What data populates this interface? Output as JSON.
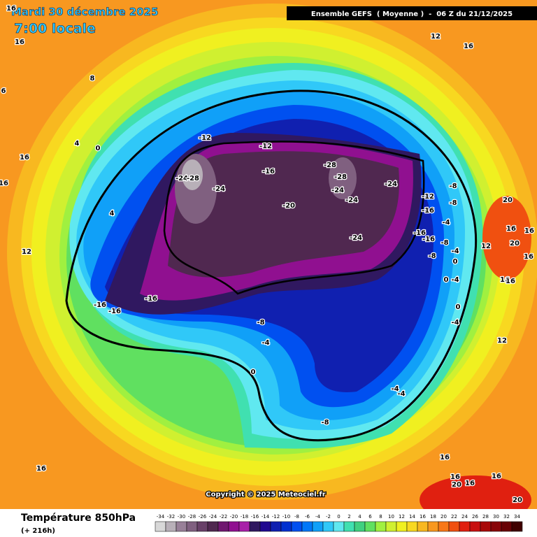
{
  "header": {
    "date": "Mardi 30 décembre 2025",
    "local_time": "7:00 locale",
    "run": "Ensemble GEFS  ( Moyenne )  -  06 Z du 21/12/2025",
    "copyright": "Copyright © 2025 Meteociel.fr"
  },
  "footer": {
    "title": "Température 850hPa",
    "lead": "(+ 216h)"
  },
  "scale": {
    "values": [
      -34,
      -32,
      -30,
      -28,
      -26,
      -24,
      -22,
      -20,
      -18,
      -16,
      -14,
      -12,
      -10,
      -8,
      -6,
      -4,
      -2,
      0,
      2,
      4,
      6,
      8,
      10,
      12,
      14,
      16,
      18,
      20,
      22,
      24,
      26,
      28,
      30,
      32,
      34
    ],
    "colors": [
      "#d8d8d8",
      "#b8b0b8",
      "#988098",
      "#806080",
      "#684068",
      "#502850",
      "#701870",
      "#901090",
      "#a820a8",
      "#301860",
      "#200890",
      "#1020b0",
      "#0030d0",
      "#0050f0",
      "#0078f8",
      "#10a0f8",
      "#30c8f8",
      "#60e8f0",
      "#40e0b0",
      "#40d080",
      "#60e060",
      "#a0f040",
      "#d0f030",
      "#f0f020",
      "#f8d820",
      "#f8b820",
      "#f89820",
      "#f87818",
      "#f05010",
      "#e02010",
      "#c81010",
      "#a80808",
      "#880408",
      "#680004",
      "#400000"
    ]
  },
  "map_labels": [
    16,
    16,
    6,
    8,
    4,
    0,
    16,
    16,
    4,
    12,
    12,
    16,
    -12,
    -12,
    -16,
    -24,
    -28,
    -24,
    -20,
    -28,
    -28,
    -24,
    -24,
    -24,
    -24,
    -12,
    -8,
    -16,
    -8,
    -16,
    -16,
    -4,
    -8,
    -8,
    -4,
    0,
    0,
    -4,
    0,
    -4,
    -16,
    -16,
    -16,
    -8,
    -4,
    0,
    -4,
    -4,
    -8,
    20,
    16,
    16,
    12,
    20,
    16,
    16,
    16,
    12,
    16,
    16,
    16,
    16,
    16,
    20,
    20
  ]
}
